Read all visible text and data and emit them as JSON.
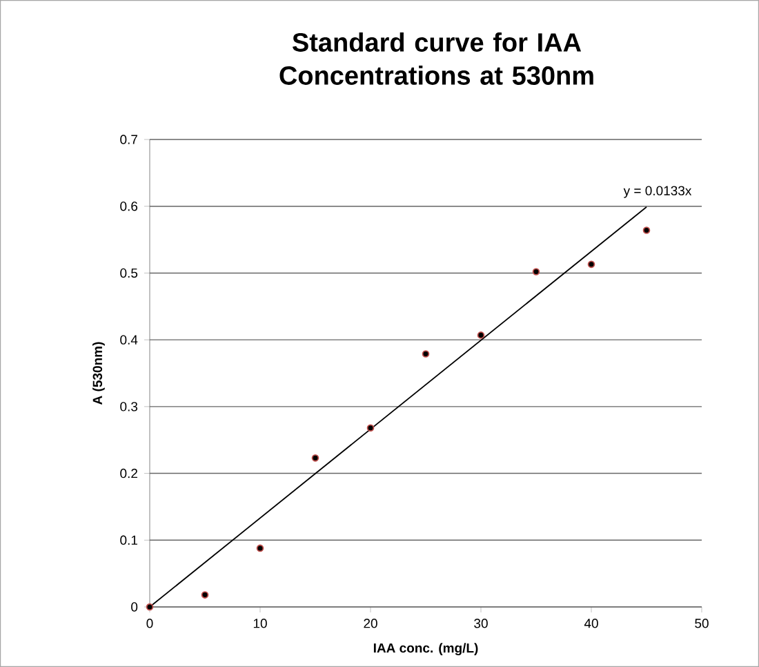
{
  "chart_data": {
    "type": "scatter",
    "title": "Standard curve for IAA Concentrations at 530nm",
    "xlabel": "IAA conc. (mg/L)",
    "ylabel": "A (530nm)",
    "series": [
      {
        "color": "#c0504d",
        "marker": "circle",
        "x": [
          0,
          5,
          10,
          15,
          20,
          25,
          30,
          35,
          40,
          45
        ],
        "values": [
          0,
          0.018,
          0.088,
          0.223,
          0.268,
          0.379,
          0.407,
          0.502,
          0.513,
          0.564
        ]
      },
      {
        "type": "line",
        "name": "y = 0.0133x",
        "color": "#000000",
        "marker": "none",
        "line_style": "solid",
        "x": [
          0,
          45
        ],
        "values": [
          0,
          0.599
        ]
      }
    ],
    "xlim": [
      0,
      50
    ],
    "xticks": [
      0,
      10,
      20,
      30,
      40,
      50
    ],
    "ylim": [
      0,
      0.7
    ],
    "yticks": [
      0,
      0.1,
      0.2,
      0.3,
      0.4,
      0.5,
      0.6,
      0.7
    ],
    "grid": "y",
    "legend": false
  }
}
